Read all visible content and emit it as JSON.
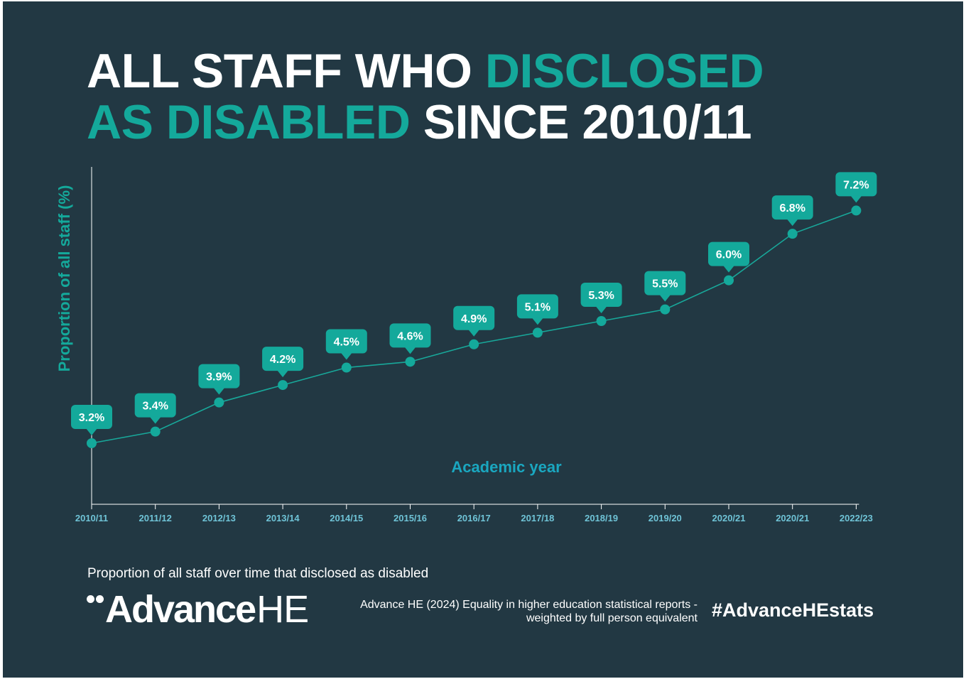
{
  "title": {
    "part1": "ALL STAFF WHO ",
    "part2": "DISCLOSED",
    "part3": "AS DISABLED",
    "part4": " SINCE 2010/11"
  },
  "colors": {
    "background": "#223843",
    "accent": "#14a99b",
    "axis_label": "#1aa7c0",
    "tick_label": "#6fc3d6",
    "text": "#ffffff"
  },
  "chart_data": {
    "type": "line",
    "title": "ALL STAFF WHO DISCLOSED AS DISABLED SINCE 2010/11",
    "xlabel": "Academic year",
    "ylabel": "Proportion of all staff (%)",
    "categories": [
      "2010/11",
      "2011/12",
      "2012/13",
      "2013/14",
      "2014/15",
      "2015/16",
      "2016/17",
      "2017/18",
      "2018/19",
      "2019/20",
      "2020/21",
      "2020/21",
      "2022/23"
    ],
    "values": [
      3.2,
      3.4,
      3.9,
      4.2,
      4.5,
      4.6,
      4.9,
      5.1,
      5.3,
      5.5,
      6.0,
      6.8,
      7.2
    ],
    "data_labels": [
      "3.2%",
      "3.4%",
      "3.9%",
      "4.2%",
      "4.5%",
      "4.6%",
      "4.9%",
      "5.1%",
      "5.3%",
      "5.5%",
      "6.0%",
      "6.8%",
      "7.2%"
    ],
    "grid": false
  },
  "footer": {
    "caption": "Proportion of all staff over time that disclosed as disabled",
    "logo_bold": "Advance",
    "logo_light": "HE",
    "source_line1": "Advance HE (2024) Equality in higher education statistical reports -",
    "source_line2": "weighted by full person equivalent",
    "hashtag": "#AdvanceHEstats"
  }
}
